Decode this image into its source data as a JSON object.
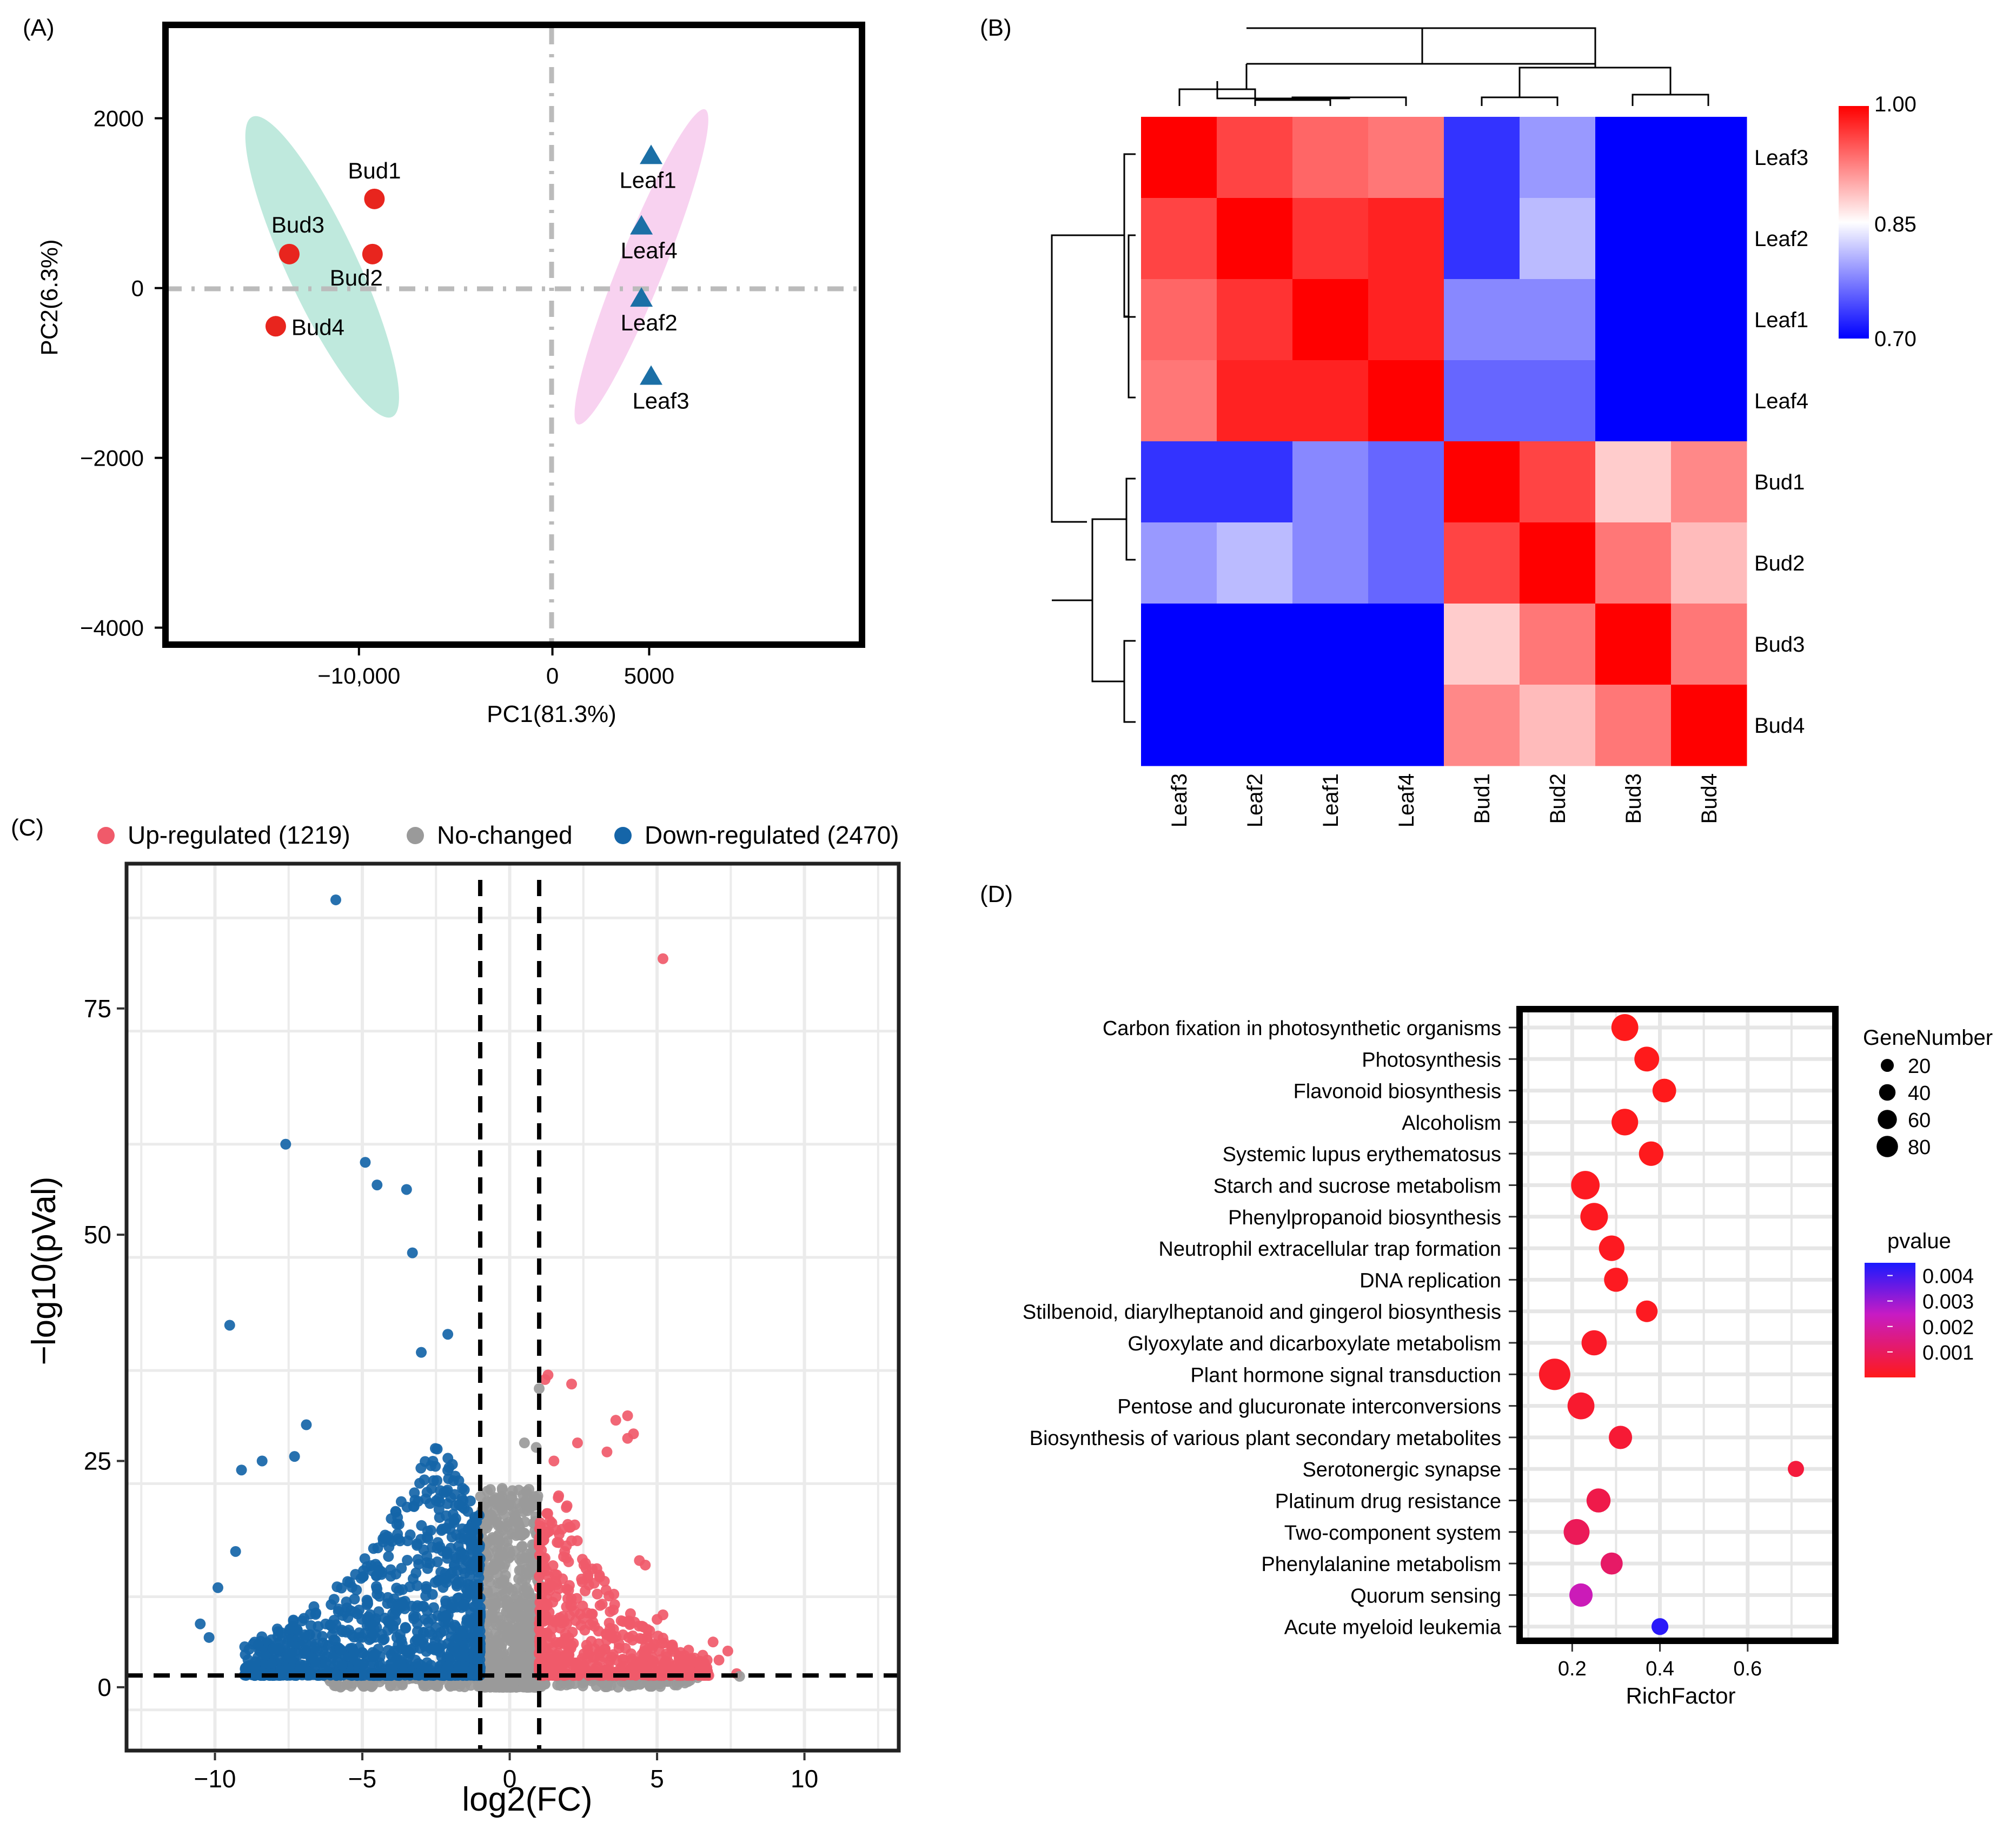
{
  "panel_labels": [
    "(A)",
    "(B)",
    "(C)",
    "(D)"
  ],
  "colors": {
    "bud": "#e8251e",
    "leaf": "#1b6fa6",
    "bud_ellipse": "#bfe9dd",
    "leaf_ellipse": "#f8d2f0",
    "up": "#f05a6a",
    "down": "#1565a8",
    "nochange": "#9a9a9a",
    "heat_low": "#0000ff",
    "heat_mid": "#ffffff",
    "heat_high": "#ff0000"
  },
  "chart_data": [
    {
      "panel": "A",
      "type": "scatter",
      "xlabel": "PC1(81.3%)",
      "ylabel": "PC2(6.3%)",
      "xlim": [
        -20000,
        16000
      ],
      "ylim": [
        -4200,
        3100
      ],
      "xticks": [
        -10000,
        0,
        5000
      ],
      "xtick_labels": [
        "−10,000",
        "0",
        "5000"
      ],
      "yticks": [
        2000,
        0,
        -2000,
        -4000
      ],
      "ytick_labels": [
        "2000",
        "0",
        "−2000",
        "−4000"
      ],
      "series": [
        {
          "name": "Bud",
          "marker": "circle",
          "points": [
            {
              "label": "Bud1",
              "x": -9200,
              "y": 1050
            },
            {
              "label": "Bud2",
              "x": -9300,
              "y": 400
            },
            {
              "label": "Bud3",
              "x": -13600,
              "y": 400
            },
            {
              "label": "Bud4",
              "x": -14300,
              "y": -450
            }
          ]
        },
        {
          "name": "Leaf",
          "marker": "triangle",
          "points": [
            {
              "label": "Leaf1",
              "x": 5100,
              "y": 1550
            },
            {
              "label": "Leaf4",
              "x": 4600,
              "y": 720
            },
            {
              "label": "Leaf2",
              "x": 4600,
              "y": -130
            },
            {
              "label": "Leaf3",
              "x": 5100,
              "y": -1050
            }
          ]
        }
      ],
      "ellipses": [
        {
          "group": "Bud",
          "cx": -11900,
          "cy": 250,
          "rx": 5500,
          "ry": 1950,
          "angle": -25
        },
        {
          "group": "Leaf",
          "cx": 4600,
          "cy": 250,
          "rx": 3500,
          "ry": 2000,
          "angle": 22
        }
      ]
    },
    {
      "panel": "B",
      "type": "heatmap",
      "rows": [
        "Leaf3",
        "Leaf2",
        "Leaf1",
        "Leaf4",
        "Bud1",
        "Bud2",
        "Bud3",
        "Bud4"
      ],
      "cols": [
        "Leaf3",
        "Leaf2",
        "Leaf1",
        "Leaf4",
        "Bud1",
        "Bud2",
        "Bud3",
        "Bud4"
      ],
      "values": [
        [
          1.0,
          0.96,
          0.94,
          0.93,
          0.73,
          0.79,
          0.7,
          0.7
        ],
        [
          0.96,
          1.0,
          0.97,
          0.98,
          0.73,
          0.81,
          0.7,
          0.7
        ],
        [
          0.94,
          0.97,
          1.0,
          0.98,
          0.78,
          0.78,
          0.7,
          0.7
        ],
        [
          0.93,
          0.98,
          0.98,
          1.0,
          0.76,
          0.76,
          0.7,
          0.7
        ],
        [
          0.73,
          0.73,
          0.78,
          0.76,
          1.0,
          0.96,
          0.88,
          0.92
        ],
        [
          0.79,
          0.81,
          0.78,
          0.76,
          0.96,
          1.0,
          0.93,
          0.89
        ],
        [
          0.7,
          0.7,
          0.7,
          0.7,
          0.88,
          0.93,
          1.0,
          0.93
        ],
        [
          0.7,
          0.7,
          0.7,
          0.7,
          0.92,
          0.89,
          0.93,
          1.0
        ]
      ],
      "scale": {
        "min": 0.7,
        "mid": 0.85,
        "max": 1.0,
        "labels": [
          "1.00",
          "0.85",
          "0.70"
        ]
      }
    },
    {
      "panel": "C",
      "type": "scatter",
      "xlabel": "log2(FC)",
      "ylabel": "−log10(pVal)",
      "xlim": [
        -13,
        13.2
      ],
      "ylim": [
        -7,
        91
      ],
      "xticks": [
        -10,
        -5,
        0,
        5,
        10
      ],
      "xtick_labels": [
        "−10",
        "−5",
        "0",
        "5",
        "10"
      ],
      "yticks": [
        0,
        25,
        50,
        75
      ],
      "ytick_labels": [
        "0",
        "25",
        "50",
        "75"
      ],
      "thresholds": {
        "fc": [
          -1,
          1
        ],
        "p": 1.3
      },
      "legend": [
        {
          "key": "up",
          "label": "Up-regulated (1219)"
        },
        {
          "key": "nochange",
          "label": "No-changed"
        },
        {
          "key": "down",
          "label": "Down-regulated (2470)"
        }
      ],
      "series": [
        {
          "name": "Up-regulated",
          "count": 1219,
          "highlights": [
            [
              5.2,
              80.5
            ],
            [
              1.3,
              34.5
            ],
            [
              1.2,
              34
            ],
            [
              2.1,
              33.5
            ],
            [
              4,
              30
            ],
            [
              3.6,
              29.5
            ],
            [
              4.2,
              28
            ],
            [
              4,
              27.5
            ],
            [
              2.3,
              27
            ],
            [
              3.3,
              26
            ],
            [
              1.5,
              25
            ],
            [
              4.4,
              14
            ],
            [
              4.6,
              13.5
            ],
            [
              5.2,
              8
            ],
            [
              5,
              7.5
            ],
            [
              6.9,
              5
            ],
            [
              7.4,
              4
            ],
            [
              6.7,
              3
            ],
            [
              7.1,
              3
            ],
            [
              7.7,
              1.5
            ],
            [
              6.2,
              1.5
            ]
          ]
        },
        {
          "name": "Down-regulated",
          "count": 2470,
          "highlights": [
            [
              -5.9,
              87
            ],
            [
              -7.6,
              60
            ],
            [
              -4.9,
              58
            ],
            [
              -4.5,
              55.5
            ],
            [
              -3.5,
              55
            ],
            [
              -3.3,
              48
            ],
            [
              -9.5,
              40
            ],
            [
              -2.1,
              39
            ],
            [
              -3,
              37
            ],
            [
              -9.1,
              24
            ],
            [
              -8.4,
              25
            ],
            [
              -7.3,
              25.5
            ],
            [
              -6.9,
              29
            ],
            [
              -10.5,
              7
            ],
            [
              -10.2,
              5.5
            ],
            [
              -9.9,
              11
            ],
            [
              -9.3,
              15
            ],
            [
              -8.2,
              1.5
            ]
          ]
        },
        {
          "name": "No-changed",
          "highlights": [
            [
              1,
              33
            ],
            [
              0.5,
              27
            ],
            [
              0.9,
              26.5
            ],
            [
              7.8,
              1.2
            ]
          ]
        }
      ]
    },
    {
      "panel": "D",
      "type": "scatter",
      "xlabel": "RichFactor",
      "xlim": [
        0.08,
        0.8
      ],
      "xticks": [
        0.2,
        0.4,
        0.6
      ],
      "xtick_labels": [
        "0.2",
        "0.4",
        "0.6"
      ],
      "size_legend": {
        "title": "GeneNumber",
        "values": [
          20,
          40,
          60,
          80
        ],
        "labels": [
          "20",
          "40",
          "60",
          "80"
        ]
      },
      "color_legend": {
        "title": "pvalue",
        "min": 0,
        "max": 0.0045,
        "ticks": [
          0.004,
          0.003,
          0.002,
          0.001
        ],
        "labels": [
          "0.004",
          "0.003",
          "0.002",
          "0.001"
        ],
        "low_color": "#ff1a1a",
        "high_color": "#1a1aff"
      },
      "terms": [
        {
          "name": "Carbon fixation in photosynthetic organisms",
          "rich": 0.32,
          "genes": 62,
          "p": 1e-05
        },
        {
          "name": "Photosynthesis",
          "rich": 0.37,
          "genes": 50,
          "p": 1e-05
        },
        {
          "name": "Flavonoid biosynthesis",
          "rich": 0.41,
          "genes": 44,
          "p": 1e-05
        },
        {
          "name": "Alcoholism",
          "rich": 0.32,
          "genes": 60,
          "p": 5e-05
        },
        {
          "name": "Systemic lupus erythematosus",
          "rich": 0.38,
          "genes": 48,
          "p": 5e-05
        },
        {
          "name": "Starch and sucrose metabolism",
          "rich": 0.23,
          "genes": 72,
          "p": 0.0001
        },
        {
          "name": "Phenylpropanoid biosynthesis",
          "rich": 0.25,
          "genes": 66,
          "p": 0.0001
        },
        {
          "name": "Neutrophil extracellular trap formation",
          "rich": 0.29,
          "genes": 54,
          "p": 0.0001
        },
        {
          "name": "DNA replication",
          "rich": 0.3,
          "genes": 46,
          "p": 0.0001
        },
        {
          "name": "Stilbenoid, diarylheptanoid and gingerol biosynthesis",
          "rich": 0.37,
          "genes": 34,
          "p": 0.0001
        },
        {
          "name": "Glyoxylate and dicarboxylate metabolism",
          "rich": 0.25,
          "genes": 52,
          "p": 0.0002
        },
        {
          "name": "Plant hormone signal transduction",
          "rich": 0.16,
          "genes": 92,
          "p": 0.0002
        },
        {
          "name": "Pentose and glucuronate interconversions",
          "rich": 0.22,
          "genes": 62,
          "p": 0.0003
        },
        {
          "name": "Biosynthesis of various plant secondary metabolites",
          "rich": 0.31,
          "genes": 42,
          "p": 0.0004
        },
        {
          "name": "Serotonergic synapse",
          "rich": 0.71,
          "genes": 14,
          "p": 0.0005
        },
        {
          "name": "Platinum drug resistance",
          "rich": 0.26,
          "genes": 46,
          "p": 0.0007
        },
        {
          "name": "Two-component system",
          "rich": 0.21,
          "genes": 56,
          "p": 0.0009
        },
        {
          "name": "Phenylalanine metabolism",
          "rich": 0.29,
          "genes": 36,
          "p": 0.0011
        },
        {
          "name": "Quorum sensing",
          "rich": 0.22,
          "genes": 42,
          "p": 0.0023
        },
        {
          "name": "Acute myeloid leukemia",
          "rich": 0.4,
          "genes": 16,
          "p": 0.0043
        }
      ]
    }
  ]
}
